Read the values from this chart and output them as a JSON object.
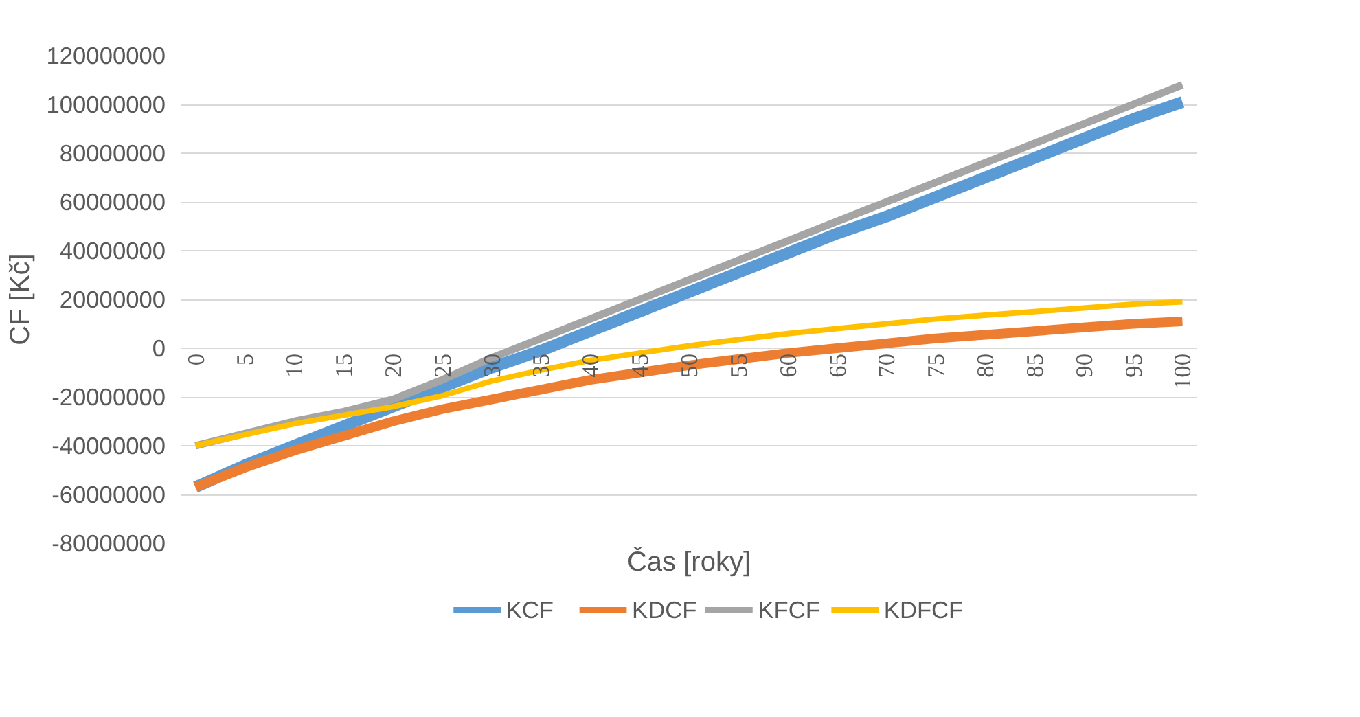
{
  "chart_data": {
    "type": "line",
    "xlabel": "Čas [roky]",
    "ylabel": "CF [Kč]",
    "x": [
      0,
      5,
      10,
      15,
      20,
      25,
      30,
      35,
      40,
      45,
      50,
      55,
      60,
      65,
      70,
      75,
      80,
      85,
      90,
      95,
      100
    ],
    "xlim": [
      0,
      100
    ],
    "xticks": [
      0,
      5,
      10,
      15,
      20,
      25,
      30,
      35,
      40,
      45,
      50,
      55,
      60,
      65,
      70,
      75,
      80,
      85,
      90,
      95,
      100
    ],
    "ylim": [
      -80000000,
      120000000
    ],
    "yticks": [
      -80000000,
      -60000000,
      -40000000,
      -20000000,
      0,
      20000000,
      40000000,
      60000000,
      80000000,
      100000000,
      120000000
    ],
    "grid": "y",
    "legend": "bottom",
    "marker": "none",
    "line_style": "solid",
    "series": [
      {
        "name": "KCF",
        "color": "#5b9bd5",
        "values": [
          -57000000,
          -48000000,
          -40000000,
          -32000000,
          -24000000,
          -16000000,
          -8000000,
          -1000000,
          7000000,
          15000000,
          23000000,
          31000000,
          39000000,
          47000000,
          54000000,
          62000000,
          70000000,
          78000000,
          86000000,
          94000000,
          101000000
        ]
      },
      {
        "name": "KDCF",
        "color": "#ed7d31",
        "values": [
          -57000000,
          -49000000,
          -42000000,
          -36000000,
          -30000000,
          -25000000,
          -21000000,
          -17000000,
          -13000000,
          -10000000,
          -7000000,
          -4500000,
          -2000000,
          0,
          2000000,
          4000000,
          5500000,
          7000000,
          8500000,
          10000000,
          11000000
        ]
      },
      {
        "name": "KFCF",
        "color": "#a5a5a5",
        "values": [
          -40000000,
          -35000000,
          -30000000,
          -26000000,
          -21000000,
          -13000000,
          -4000000,
          4000000,
          12000000,
          20000000,
          28000000,
          36000000,
          44000000,
          52000000,
          60000000,
          68000000,
          76000000,
          84000000,
          92000000,
          100000000,
          108000000
        ]
      },
      {
        "name": "KDFCF",
        "color": "#ffc000",
        "values": [
          -40000000,
          -35500000,
          -31000000,
          -27500000,
          -24000000,
          -19500000,
          -13500000,
          -9000000,
          -5000000,
          -2000000,
          1000000,
          3500000,
          6000000,
          8000000,
          10000000,
          12000000,
          13500000,
          15000000,
          16500000,
          18000000,
          19000000
        ]
      }
    ]
  }
}
